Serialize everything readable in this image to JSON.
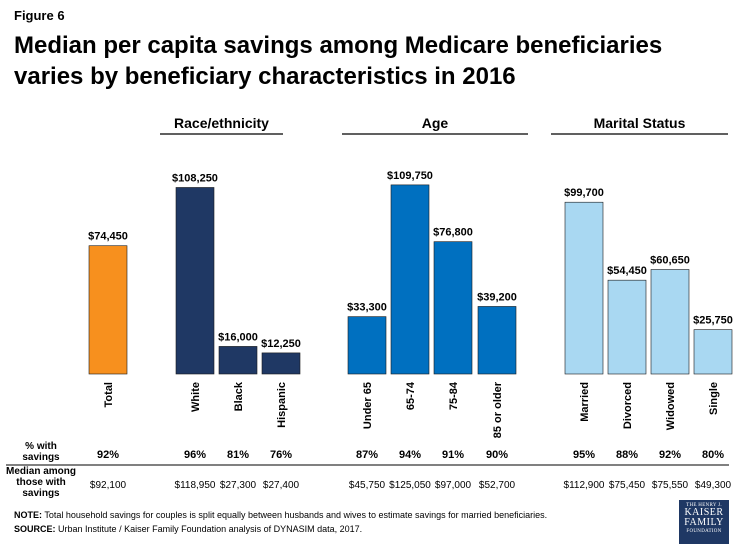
{
  "figure_label": "Figure 6",
  "chart_data": {
    "type": "bar",
    "title": "Median per capita savings among Medicare beneficiaries varies by beneficiary characteristics in 2016",
    "ylim": [
      0,
      130000
    ],
    "groups": [
      {
        "name": "",
        "categories": [
          "Total"
        ],
        "values": [
          74450
        ],
        "labels": [
          "$74,450"
        ],
        "color": "#f7901e"
      },
      {
        "name": "Race/ethnicity",
        "categories": [
          "White",
          "Black",
          "Hispanic"
        ],
        "values": [
          108250,
          16000,
          12250
        ],
        "labels": [
          "$108,250",
          "$16,000",
          "$12,250"
        ],
        "color": "#1f3864"
      },
      {
        "name": "Age",
        "categories": [
          "Under 65",
          "65-74",
          "75-84",
          "85 or older"
        ],
        "values": [
          33300,
          109750,
          76800,
          39200
        ],
        "labels": [
          "$33,300",
          "$109,750",
          "$76,800",
          "$39,200"
        ],
        "color": "#0070c0"
      },
      {
        "name": "Marital Status",
        "categories": [
          "Married",
          "Divorced",
          "Widowed",
          "Single"
        ],
        "values": [
          99700,
          54450,
          60650,
          25750
        ],
        "labels": [
          "$99,700",
          "$54,450",
          "$60,650",
          "$25,750"
        ],
        "color": "#a9d8f2"
      }
    ],
    "pct_with_savings": [
      "92%",
      "96%",
      "81%",
      "76%",
      "87%",
      "94%",
      "91%",
      "90%",
      "95%",
      "88%",
      "92%",
      "80%"
    ],
    "median_among_savers": [
      "$92,100",
      "$118,950",
      "$27,300",
      "$27,400",
      "$45,750",
      "$125,050",
      "$97,000",
      "$52,700",
      "$112,900",
      "$75,450",
      "$75,550",
      "$49,300"
    ]
  },
  "rows": {
    "pct_label": "% with savings",
    "median_label": "Median among those with savings"
  },
  "note": {
    "label": "NOTE:",
    "text": "Total household savings for couples is split equally between husbands and wives to estimate savings for married beneficiaries."
  },
  "source": {
    "label": "SOURCE:",
    "text": "Urban Institute / Kaiser Family Foundation analysis of DYNASIM data, 2017."
  },
  "logo": {
    "line1": "THE HENRY J.",
    "line2": "KAISER",
    "line3": "FAMILY",
    "line4": "FOUNDATION"
  }
}
